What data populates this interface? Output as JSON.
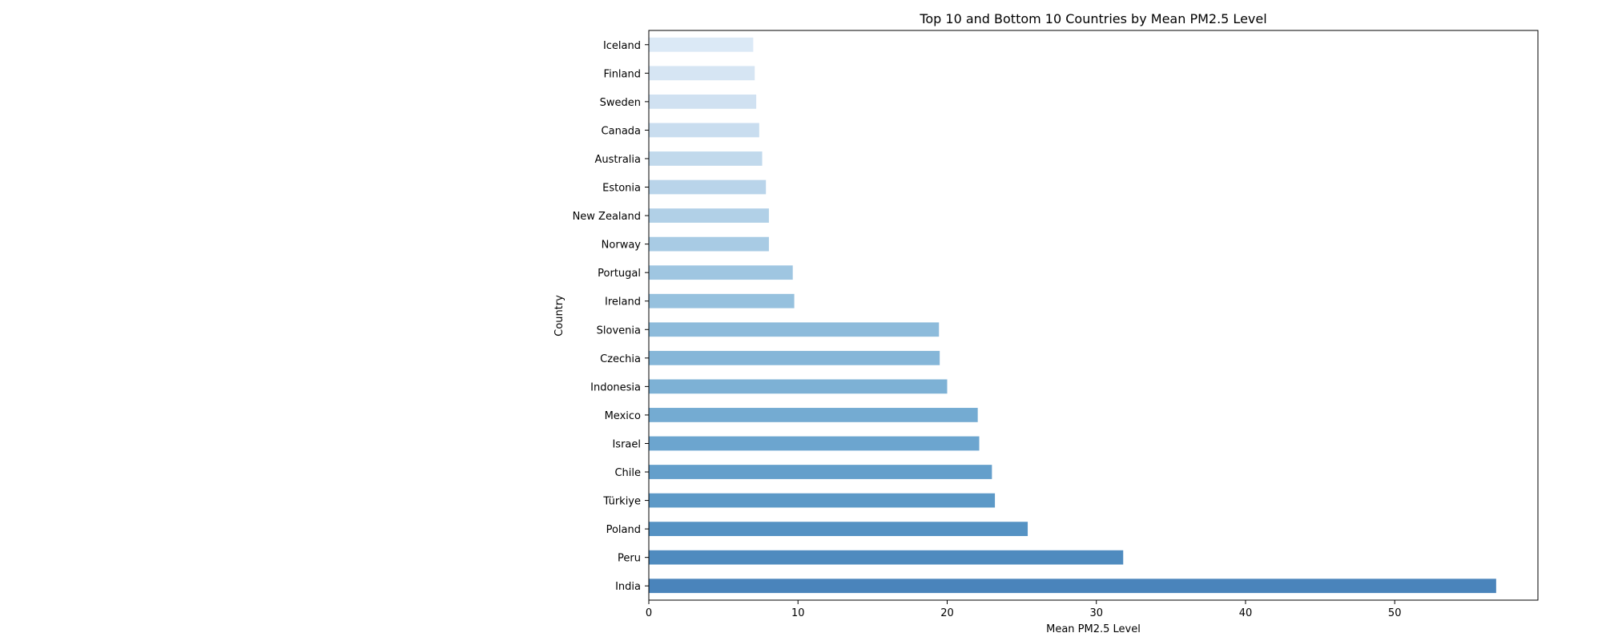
{
  "chart_data": {
    "type": "bar",
    "orientation": "horizontal",
    "title": "Top 10 and Bottom 10 Countries by Mean PM2.5 Level",
    "xlabel": "Mean PM2.5 Level",
    "ylabel": "Country",
    "xlim": [
      0,
      59.6
    ],
    "xticks": [
      0,
      10,
      20,
      30,
      40,
      50
    ],
    "grid": false,
    "categories": [
      "Iceland",
      "Finland",
      "Sweden",
      "Canada",
      "Australia",
      "Estonia",
      "New Zealand",
      "Norway",
      "Portugal",
      "Ireland",
      "Slovenia",
      "Czechia",
      "Indonesia",
      "Mexico",
      "Israel",
      "Chile",
      "Türkiye",
      "Poland",
      "Peru",
      "India"
    ],
    "values": [
      7.0,
      7.1,
      7.2,
      7.4,
      7.6,
      7.85,
      8.05,
      8.05,
      9.65,
      9.75,
      19.45,
      19.5,
      20.0,
      22.05,
      22.15,
      23.0,
      23.2,
      25.4,
      31.8,
      56.8
    ],
    "colors": [
      "#dbe9f6",
      "#d6e5f3",
      "#d0e1f1",
      "#c9ddef",
      "#c1d9ec",
      "#b9d4ea",
      "#b1d0e7",
      "#a8cbe4",
      "#9fc6e1",
      "#96c1de",
      "#8dbbdb",
      "#85b6d8",
      "#7db1d5",
      "#74abd2",
      "#6ca5cf",
      "#649fcb",
      "#5c99c7",
      "#5592c3",
      "#4f8bbf",
      "#4a84bb"
    ]
  }
}
